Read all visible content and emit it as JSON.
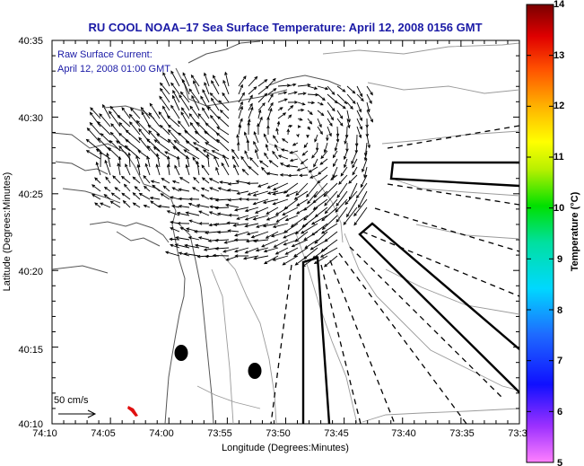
{
  "chart_data": {
    "type": "vector-field",
    "title": "RU COOL  NOAA–17  Sea Surface Temperature:  April 12, 2008 0156 GMT",
    "annotation_line1": "Raw Surface Current:",
    "annotation_line2": "April 12, 2008 01:00 GMT",
    "xlabel": "Longitude (Degrees:Minutes)",
    "ylabel": "Latitude (Degrees:Minutes)",
    "x_ticks": [
      "74:10",
      "74:05",
      "74:00",
      "73:55",
      "73:50",
      "73:45",
      "73:40",
      "73:35",
      "73:3"
    ],
    "y_ticks": [
      "40:10",
      "40:15",
      "40:20",
      "40:25",
      "40:30",
      "40:35"
    ],
    "xlim_minutes_west": [
      4450,
      4410
    ],
    "ylim_minutes_north": [
      2410,
      2435
    ],
    "scale_label": "50 cm/s",
    "colorbar": {
      "label": "Temperature (°C)",
      "ticks": [
        "5",
        "6",
        "7",
        "8",
        "9",
        "10",
        "11",
        "12",
        "13",
        "14"
      ],
      "range": [
        5,
        14
      ]
    },
    "stations": [
      {
        "name": "station-1",
        "lon_min": 4438.9,
        "lat_min": 2414.6
      },
      {
        "name": "station-2",
        "lon_min": 4432.2,
        "lat_min": 2413.5
      }
    ]
  },
  "colors": {
    "title": "#1a1aa6",
    "land_outline": "#555555",
    "bathymetry": "#9a9a9a",
    "vectors": "#000000",
    "sst_patch": "#e01010"
  }
}
